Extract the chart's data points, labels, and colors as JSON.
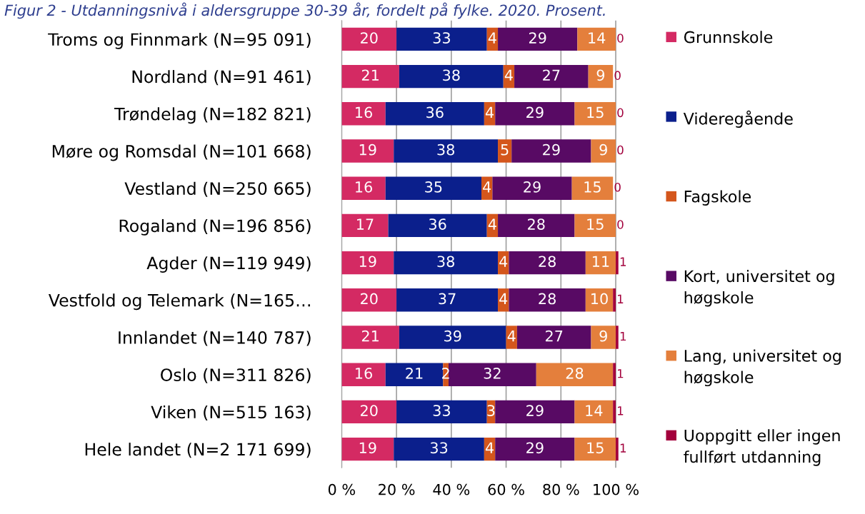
{
  "chart_data": {
    "type": "bar",
    "orientation": "horizontal",
    "stacked": true,
    "title": "Figur 2 - Utdanningsnivå i aldersgruppe 30-39 år, fordelt på fylke. 2020. Prosent.",
    "categories": [
      "Troms og Finnmark (N=95 091)",
      "Nordland (N=91 461)",
      "Trøndelag (N=182 821)",
      "Møre og Romsdal (N=101 668)",
      "Vestland (N=250 665)",
      "Rogaland (N=196 856)",
      "Agder (N=119 949)",
      "Vestfold og Telemark (N=165…",
      "Innlandet (N=140 787)",
      "Oslo (N=311 826)",
      "Viken (N=515 163)",
      "Hele landet (N=2 171 699)"
    ],
    "series": [
      {
        "name": "Grunnskole",
        "color": "#d42a63",
        "values": [
          20,
          21,
          16,
          19,
          16,
          17,
          19,
          20,
          21,
          16,
          20,
          19
        ]
      },
      {
        "name": "Videregående",
        "color": "#0b1f8c",
        "values": [
          33,
          38,
          36,
          38,
          35,
          36,
          38,
          37,
          39,
          21,
          33,
          33
        ]
      },
      {
        "name": "Fagskole",
        "color": "#d4561c",
        "values": [
          4,
          4,
          4,
          5,
          4,
          4,
          4,
          4,
          4,
          2,
          3,
          4
        ]
      },
      {
        "name": "Kort, universitet og høgskole",
        "color": "#580a64",
        "values": [
          29,
          27,
          29,
          29,
          29,
          28,
          28,
          28,
          27,
          32,
          29,
          29
        ]
      },
      {
        "name": "Lang, universitet og høgskole",
        "color": "#e47f3c",
        "values": [
          14,
          9,
          15,
          9,
          15,
          15,
          11,
          10,
          9,
          28,
          14,
          15
        ]
      },
      {
        "name": "Uoppgitt eller ingen fullført utdanning",
        "color": "#a3003c",
        "values": [
          0,
          0,
          0,
          0,
          0,
          0,
          1,
          1,
          1,
          1,
          1,
          1
        ]
      }
    ],
    "xlim": [
      0,
      101
    ],
    "xticks": [
      {
        "value": 0,
        "label": "0 %"
      },
      {
        "value": 20,
        "label": "20 %"
      },
      {
        "value": 40,
        "label": "40 %"
      },
      {
        "value": 60,
        "label": "60 %"
      },
      {
        "value": 80,
        "label": "80 %"
      },
      {
        "value": 100,
        "label": "100 %"
      }
    ],
    "grid": "x",
    "legend": "right",
    "data_labels": true
  }
}
